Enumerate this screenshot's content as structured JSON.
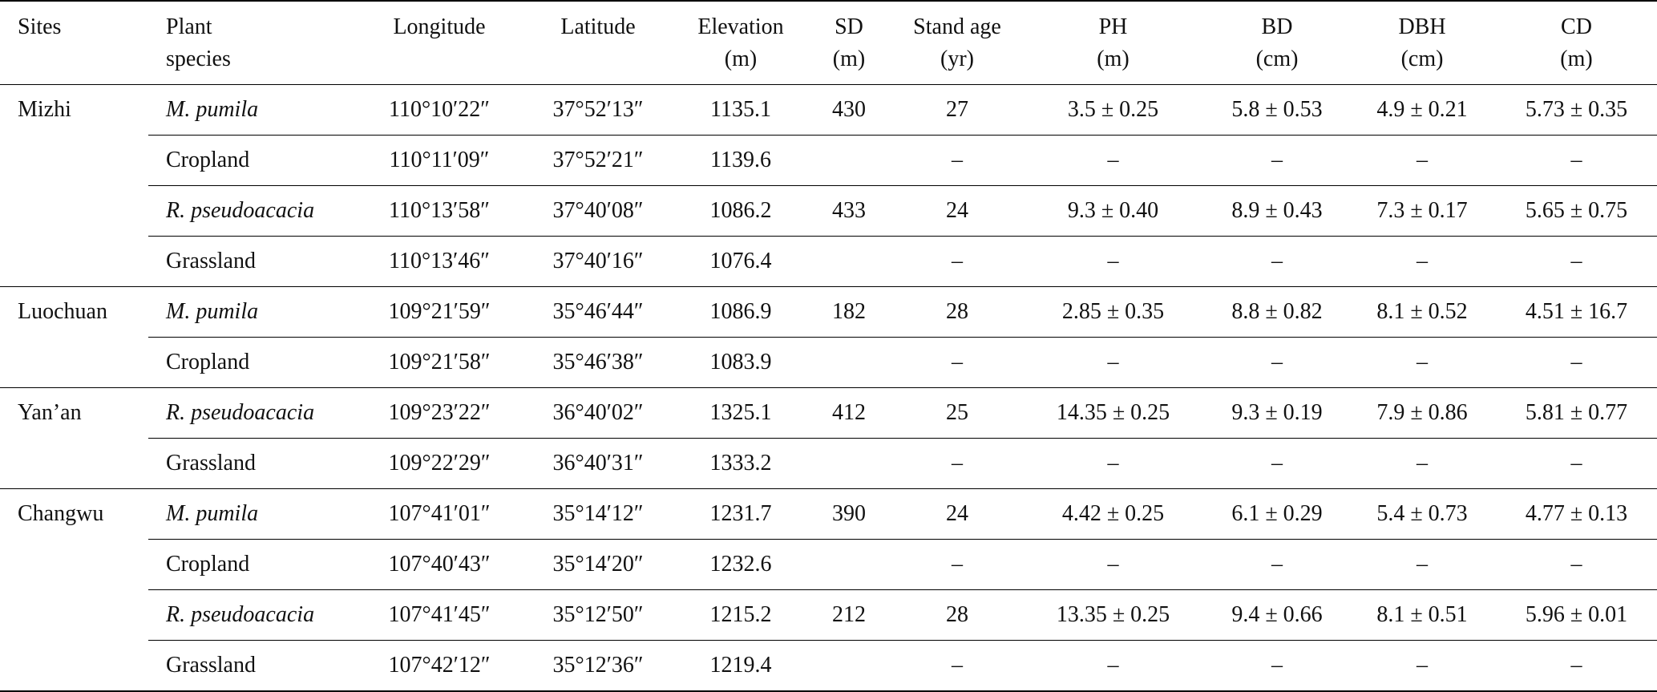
{
  "table": {
    "header": [
      [
        "Sites"
      ],
      [
        "Plant",
        "species"
      ],
      [
        "Longitude"
      ],
      [
        "Latitude"
      ],
      [
        "Elevation",
        "(m)"
      ],
      [
        "SD",
        "(m)"
      ],
      [
        "Stand age",
        "(yr)"
      ],
      [
        "PH",
        "(m)"
      ],
      [
        "BD",
        "(cm)"
      ],
      [
        "DBH",
        "(cm)"
      ],
      [
        "CD",
        "(m)"
      ]
    ],
    "groups": [
      {
        "site": "Mizhi",
        "rows": [
          [
            "M. pumila",
            "110°10′22″",
            "37°52′13″",
            "1135.1",
            "430",
            "27",
            "3.5 ± 0.25",
            "5.8 ± 0.53",
            "4.9 ± 0.21",
            "5.73 ± 0.35"
          ],
          [
            "Cropland",
            "110°11′09″",
            "37°52′21″",
            "1139.6",
            null,
            "–",
            "–",
            "–",
            "–",
            "–"
          ],
          [
            "R. pseudoacacia",
            "110°13′58″",
            "37°40′08″",
            "1086.2",
            "433",
            "24",
            "9.3 ± 0.40",
            "8.9 ± 0.43",
            "7.3 ± 0.17",
            "5.65 ± 0.75"
          ],
          [
            "Grassland",
            "110°13′46″",
            "37°40′16″",
            "1076.4",
            null,
            "–",
            "–",
            "–",
            "–",
            "–"
          ]
        ]
      },
      {
        "site": "Luochuan",
        "rows": [
          [
            "M. pumila",
            "109°21′59″",
            "35°46′44″",
            "1086.9",
            "182",
            "28",
            "2.85 ± 0.35",
            "8.8 ± 0.82",
            "8.1 ± 0.52",
            "4.51 ± 16.7"
          ],
          [
            "Cropland",
            "109°21′58″",
            "35°46′38″",
            "1083.9",
            null,
            "–",
            "–",
            "–",
            "–",
            "–"
          ]
        ]
      },
      {
        "site": "Yan’an",
        "rows": [
          [
            "R. pseudoacacia",
            "109°23′22″",
            "36°40′02″",
            "1325.1",
            "412",
            "25",
            "14.35 ± 0.25",
            "9.3 ± 0.19",
            "7.9 ± 0.86",
            "5.81 ± 0.77"
          ],
          [
            "Grassland",
            "109°22′29″",
            "36°40′31″",
            "1333.2",
            null,
            "–",
            "–",
            "–",
            "–",
            "–"
          ]
        ]
      },
      {
        "site": "Changwu",
        "rows": [
          [
            "M. pumila",
            "107°41′01″",
            "35°14′12″",
            "1231.7",
            "390",
            "24",
            "4.42 ± 0.25",
            "6.1 ± 0.29",
            "5.4 ± 0.73",
            "4.77 ± 0.13"
          ],
          [
            "Cropland",
            "107°40′43″",
            "35°14′20″",
            "1232.6",
            null,
            "–",
            "–",
            "–",
            "–",
            "–"
          ],
          [
            "R. pseudoacacia",
            "107°41′45″",
            "35°12′50″",
            "1215.2",
            "212",
            "28",
            "13.35 ± 0.25",
            "9.4 ± 0.66",
            "8.1 ± 0.51",
            "5.96 ± 0.01"
          ],
          [
            "Grassland",
            "107°42′12″",
            "35°12′36″",
            "1219.4",
            null,
            "–",
            "–",
            "–",
            "–",
            "–"
          ]
        ]
      }
    ]
  }
}
